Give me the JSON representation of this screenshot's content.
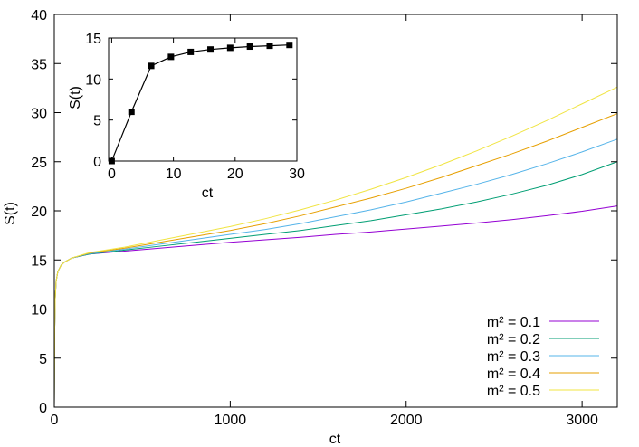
{
  "chart_data": [
    {
      "type": "line",
      "title": "",
      "xlabel": "ct",
      "ylabel": "S(t)",
      "xlim": [
        0,
        3200
      ],
      "ylim": [
        0,
        40
      ],
      "x_ticks": [
        "0",
        "1000",
        "2000",
        "3000"
      ],
      "y_ticks": [
        "0",
        "5",
        "10",
        "15",
        "20",
        "25",
        "30",
        "35",
        "40"
      ],
      "grid": false,
      "legend": "bottom-right",
      "series": [
        {
          "name": "m² = 0.1",
          "color": "#9400d3",
          "x": [
            0,
            2,
            5,
            10,
            20,
            40,
            60,
            100,
            200,
            400,
            600,
            800,
            1000,
            1200,
            1400,
            1600,
            1800,
            2000,
            2200,
            2400,
            2600,
            2800,
            3000,
            3200
          ],
          "y": [
            0,
            7.5,
            11.0,
            12.8,
            13.8,
            14.5,
            14.8,
            15.2,
            15.6,
            15.9,
            16.2,
            16.5,
            16.8,
            17.05,
            17.3,
            17.6,
            17.85,
            18.15,
            18.45,
            18.75,
            19.1,
            19.5,
            19.95,
            20.5
          ]
        },
        {
          "name": "m² = 0.2",
          "color": "#009e73",
          "x": [
            0,
            2,
            5,
            10,
            20,
            40,
            60,
            100,
            200,
            400,
            600,
            800,
            1000,
            1200,
            1400,
            1600,
            1800,
            2000,
            2200,
            2400,
            2600,
            2800,
            3000,
            3200
          ],
          "y": [
            0,
            7.5,
            11.0,
            12.8,
            13.8,
            14.5,
            14.8,
            15.2,
            15.6,
            16.0,
            16.4,
            16.8,
            17.2,
            17.6,
            18.0,
            18.5,
            19.0,
            19.6,
            20.2,
            20.9,
            21.7,
            22.6,
            23.7,
            25.0
          ]
        },
        {
          "name": "m² = 0.3",
          "color": "#56b4e9",
          "x": [
            0,
            2,
            5,
            10,
            20,
            40,
            60,
            100,
            200,
            400,
            600,
            800,
            1000,
            1200,
            1400,
            1600,
            1800,
            2000,
            2200,
            2400,
            2600,
            2800,
            3000,
            3200
          ],
          "y": [
            0,
            7.5,
            11.0,
            12.8,
            13.8,
            14.5,
            14.8,
            15.2,
            15.65,
            16.1,
            16.6,
            17.1,
            17.6,
            18.1,
            18.7,
            19.4,
            20.1,
            20.9,
            21.8,
            22.7,
            23.7,
            24.8,
            26.0,
            27.3
          ]
        },
        {
          "name": "m² = 0.4",
          "color": "#e69f00",
          "x": [
            0,
            2,
            5,
            10,
            20,
            40,
            60,
            100,
            200,
            400,
            600,
            800,
            1000,
            1200,
            1400,
            1600,
            1800,
            2000,
            2200,
            2400,
            2600,
            2800,
            3000,
            3200
          ],
          "y": [
            0,
            7.5,
            11.0,
            12.8,
            13.8,
            14.5,
            14.8,
            15.2,
            15.7,
            16.2,
            16.8,
            17.4,
            18.0,
            18.7,
            19.5,
            20.4,
            21.3,
            22.3,
            23.4,
            24.6,
            25.8,
            27.1,
            28.5,
            29.9
          ]
        },
        {
          "name": "m² = 0.5",
          "color": "#f0e442",
          "x": [
            0,
            2,
            5,
            10,
            20,
            40,
            60,
            100,
            200,
            400,
            600,
            800,
            1000,
            1200,
            1400,
            1600,
            1800,
            2000,
            2200,
            2400,
            2600,
            2800,
            3000,
            3200
          ],
          "y": [
            0,
            7.5,
            11.0,
            12.8,
            13.8,
            14.5,
            14.8,
            15.2,
            15.75,
            16.3,
            17.0,
            17.7,
            18.4,
            19.2,
            20.1,
            21.1,
            22.2,
            23.4,
            24.7,
            26.1,
            27.6,
            29.2,
            30.9,
            32.6
          ]
        }
      ]
    },
    {
      "type": "line",
      "title": "",
      "xlabel": "ct",
      "ylabel": "S(t)",
      "xlim": [
        -0.5,
        30
      ],
      "ylim": [
        0,
        15
      ],
      "x_ticks": [
        "0",
        "10",
        "20",
        "30"
      ],
      "y_ticks": [
        "0",
        "5",
        "10",
        "15"
      ],
      "grid": false,
      "series": [
        {
          "color": "#000000",
          "marker": "square",
          "x": [
            0,
            3.2,
            6.4,
            9.6,
            12.8,
            16.0,
            19.2,
            22.4,
            25.6,
            28.8
          ],
          "y": [
            0,
            6.0,
            11.6,
            12.7,
            13.3,
            13.6,
            13.8,
            13.95,
            14.05,
            14.15
          ]
        }
      ]
    }
  ]
}
